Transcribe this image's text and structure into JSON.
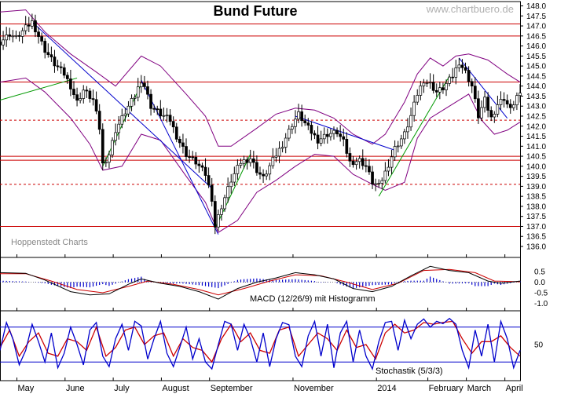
{
  "chart_data": [
    {
      "type": "candlestick",
      "title": "Bund Future",
      "watermark": "www.chartbuero.de",
      "credit": "Hoppenstedt Charts",
      "ylim": [
        135.5,
        148.2
      ],
      "yticks": [
        "148.0",
        "147.5",
        "147.0",
        "146.5",
        "146.0",
        "145.5",
        "145.0",
        "144.5",
        "144.0",
        "143.5",
        "143.0",
        "142.5",
        "142.0",
        "141.5",
        "141.0",
        "140.5",
        "140.0",
        "139.5",
        "139.0",
        "138.5",
        "138.0",
        "137.5",
        "137.0",
        "136.5",
        "136.0"
      ],
      "x_months": [
        "May",
        "June",
        "July",
        "August",
        "September",
        "November",
        "2014",
        "February",
        "March",
        "April"
      ],
      "close_path": [
        [
          0,
          146.2
        ],
        [
          3,
          146.6
        ],
        [
          5,
          146.4
        ],
        [
          8,
          146.9
        ],
        [
          10,
          147.2
        ],
        [
          12,
          146.5
        ],
        [
          14,
          145.8
        ],
        [
          17,
          145.1
        ],
        [
          20,
          144.6
        ],
        [
          22,
          144.0
        ],
        [
          24,
          143.2
        ],
        [
          26,
          143.8
        ],
        [
          29,
          143.3
        ],
        [
          31,
          141.9
        ],
        [
          32,
          140.1
        ],
        [
          34,
          140.6
        ],
        [
          36,
          141.8
        ],
        [
          39,
          142.7
        ],
        [
          42,
          143.5
        ],
        [
          44,
          144.3
        ],
        [
          45,
          144.0
        ],
        [
          47,
          143.0
        ],
        [
          50,
          142.6
        ],
        [
          53,
          142.3
        ],
        [
          55,
          141.5
        ],
        [
          58,
          140.6
        ],
        [
          61,
          140.2
        ],
        [
          64,
          139.6
        ],
        [
          66,
          138.4
        ],
        [
          67,
          137.0
        ],
        [
          69,
          138.0
        ],
        [
          72,
          139.3
        ],
        [
          75,
          140.2
        ],
        [
          78,
          140.4
        ],
        [
          80,
          139.8
        ],
        [
          82,
          139.4
        ],
        [
          85,
          140.3
        ],
        [
          88,
          141.1
        ],
        [
          91,
          142.1
        ],
        [
          93,
          142.6
        ],
        [
          96,
          141.9
        ],
        [
          99,
          141.3
        ],
        [
          102,
          141.6
        ],
        [
          105,
          141.7
        ],
        [
          107,
          141.2
        ],
        [
          109,
          140.2
        ],
        [
          112,
          140.3
        ],
        [
          114,
          140.0
        ],
        [
          116,
          139.2
        ],
        [
          118,
          139.0
        ],
        [
          120,
          139.7
        ],
        [
          123,
          140.9
        ],
        [
          126,
          141.6
        ],
        [
          128,
          142.5
        ],
        [
          130,
          143.6
        ],
        [
          132,
          144.3
        ],
        [
          134,
          144.1
        ],
        [
          136,
          143.7
        ],
        [
          138,
          143.9
        ],
        [
          141,
          144.5
        ],
        [
          143,
          145.2
        ],
        [
          145,
          144.7
        ],
        [
          147,
          144.0
        ],
        [
          149,
          142.5
        ],
        [
          151,
          143.3
        ],
        [
          153,
          142.4
        ],
        [
          155,
          143.1
        ],
        [
          157,
          143.4
        ],
        [
          159,
          142.8
        ],
        [
          161,
          143.5
        ]
      ],
      "upper_band": [
        [
          0,
          147.7
        ],
        [
          8,
          147.8
        ],
        [
          14,
          146.7
        ],
        [
          22,
          145.6
        ],
        [
          30,
          144.7
        ],
        [
          36,
          144.0
        ],
        [
          44,
          145.5
        ],
        [
          50,
          145.0
        ],
        [
          58,
          143.6
        ],
        [
          64,
          142.5
        ],
        [
          68,
          141.0
        ],
        [
          72,
          141.0
        ],
        [
          80,
          141.9
        ],
        [
          86,
          142.6
        ],
        [
          92,
          142.9
        ],
        [
          98,
          142.8
        ],
        [
          104,
          142.4
        ],
        [
          110,
          141.6
        ],
        [
          116,
          141.1
        ],
        [
          120,
          141.6
        ],
        [
          126,
          143.2
        ],
        [
          130,
          144.6
        ],
        [
          134,
          145.4
        ],
        [
          138,
          145.0
        ],
        [
          142,
          145.5
        ],
        [
          146,
          145.6
        ],
        [
          152,
          145.3
        ],
        [
          158,
          144.6
        ],
        [
          162,
          144.2
        ]
      ],
      "lower_band": [
        [
          0,
          144.2
        ],
        [
          8,
          144.4
        ],
        [
          14,
          143.7
        ],
        [
          22,
          142.4
        ],
        [
          28,
          141.1
        ],
        [
          32,
          139.8
        ],
        [
          38,
          140.0
        ],
        [
          44,
          141.6
        ],
        [
          50,
          141.3
        ],
        [
          58,
          139.5
        ],
        [
          64,
          138.2
        ],
        [
          68,
          136.7
        ],
        [
          74,
          137.3
        ],
        [
          80,
          138.7
        ],
        [
          86,
          139.3
        ],
        [
          92,
          140.0
        ],
        [
          98,
          140.6
        ],
        [
          104,
          140.5
        ],
        [
          110,
          139.6
        ],
        [
          116,
          139.1
        ],
        [
          120,
          138.8
        ],
        [
          126,
          139.2
        ],
        [
          130,
          141.4
        ],
        [
          134,
          142.4
        ],
        [
          138,
          142.8
        ],
        [
          142,
          143.2
        ],
        [
          146,
          143.6
        ],
        [
          150,
          142.3
        ],
        [
          154,
          141.6
        ],
        [
          158,
          141.8
        ],
        [
          162,
          142.2
        ]
      ],
      "h_lines": [
        147.1,
        146.5,
        144.2,
        140.5,
        140.3,
        137.0
      ],
      "h_dashed": [
        142.3,
        139.1
      ],
      "trend_lines": [
        {
          "color": "#0000cc",
          "points": [
            [
              10,
              147.2
            ],
            [
              66,
              138.9
            ]
          ]
        },
        {
          "color": "#0000cc",
          "points": [
            [
              44,
              144.3
            ],
            [
              68,
              136.6
            ]
          ]
        },
        {
          "color": "#0000cc",
          "points": [
            [
              92,
              142.5
            ],
            [
              123,
              140.8
            ]
          ]
        },
        {
          "color": "#0000cc",
          "points": [
            [
              143,
              145.4
            ],
            [
              158,
              142.4
            ]
          ]
        },
        {
          "color": "#009900",
          "points": [
            [
              0,
              143.3
            ],
            [
              24,
              144.4
            ]
          ]
        },
        {
          "color": "#009900",
          "points": [
            [
              32,
              140.0
            ],
            [
              44,
              144.1
            ]
          ]
        },
        {
          "color": "#009900",
          "points": [
            [
              67,
              136.9
            ],
            [
              78,
              140.6
            ]
          ]
        },
        {
          "color": "#009900",
          "points": [
            [
              118,
              138.5
            ],
            [
              140,
              144.5
            ]
          ]
        }
      ]
    },
    {
      "type": "line",
      "label": "MACD (12/26/9) mit Histogramm",
      "ylim": [
        -1.2,
        0.7
      ],
      "yticks": [
        "0.5",
        "0.0",
        "-0.5",
        "-1.0"
      ],
      "macd": [
        [
          0,
          0.45
        ],
        [
          8,
          0.42
        ],
        [
          14,
          0.1
        ],
        [
          22,
          -0.45
        ],
        [
          28,
          -0.6
        ],
        [
          34,
          -0.55
        ],
        [
          40,
          -0.1
        ],
        [
          44,
          0.15
        ],
        [
          50,
          -0.05
        ],
        [
          56,
          -0.2
        ],
        [
          62,
          -0.45
        ],
        [
          68,
          -0.8
        ],
        [
          74,
          -0.3
        ],
        [
          80,
          0.0
        ],
        [
          86,
          0.2
        ],
        [
          92,
          0.45
        ],
        [
          98,
          0.35
        ],
        [
          104,
          0.15
        ],
        [
          110,
          -0.3
        ],
        [
          116,
          -0.45
        ],
        [
          122,
          -0.2
        ],
        [
          128,
          0.3
        ],
        [
          134,
          0.75
        ],
        [
          140,
          0.55
        ],
        [
          146,
          0.45
        ],
        [
          152,
          0.05
        ],
        [
          156,
          -0.05
        ],
        [
          162,
          0.05
        ]
      ],
      "signal": [
        [
          0,
          0.4
        ],
        [
          8,
          0.4
        ],
        [
          16,
          0.05
        ],
        [
          24,
          -0.35
        ],
        [
          32,
          -0.5
        ],
        [
          40,
          -0.2
        ],
        [
          46,
          0.05
        ],
        [
          54,
          -0.1
        ],
        [
          62,
          -0.35
        ],
        [
          68,
          -0.6
        ],
        [
          76,
          -0.3
        ],
        [
          84,
          0.05
        ],
        [
          92,
          0.35
        ],
        [
          100,
          0.3
        ],
        [
          108,
          0.0
        ],
        [
          116,
          -0.35
        ],
        [
          124,
          -0.05
        ],
        [
          132,
          0.55
        ],
        [
          140,
          0.6
        ],
        [
          148,
          0.45
        ],
        [
          154,
          0.05
        ],
        [
          162,
          0.02
        ]
      ]
    },
    {
      "type": "line",
      "label": "Stochastik (5/3/3)",
      "ylim": [
        0,
        100
      ],
      "yticks": [
        "50"
      ],
      "levels": [
        80,
        20
      ],
      "k": [
        [
          0,
          40
        ],
        [
          2,
          88
        ],
        [
          4,
          60
        ],
        [
          6,
          15
        ],
        [
          8,
          40
        ],
        [
          10,
          85
        ],
        [
          12,
          55
        ],
        [
          14,
          20
        ],
        [
          16,
          70
        ],
        [
          18,
          10
        ],
        [
          20,
          35
        ],
        [
          22,
          80
        ],
        [
          24,
          50
        ],
        [
          26,
          15
        ],
        [
          28,
          75
        ],
        [
          30,
          88
        ],
        [
          32,
          30
        ],
        [
          34,
          12
        ],
        [
          36,
          60
        ],
        [
          38,
          85
        ],
        [
          40,
          40
        ],
        [
          42,
          90
        ],
        [
          44,
          82
        ],
        [
          46,
          25
        ],
        [
          48,
          60
        ],
        [
          50,
          90
        ],
        [
          52,
          35
        ],
        [
          54,
          12
        ],
        [
          56,
          45
        ],
        [
          58,
          80
        ],
        [
          60,
          25
        ],
        [
          62,
          60
        ],
        [
          64,
          20
        ],
        [
          66,
          8
        ],
        [
          68,
          50
        ],
        [
          70,
          90
        ],
        [
          72,
          85
        ],
        [
          74,
          40
        ],
        [
          76,
          85
        ],
        [
          78,
          60
        ],
        [
          80,
          20
        ],
        [
          82,
          70
        ],
        [
          84,
          12
        ],
        [
          86,
          60
        ],
        [
          88,
          88
        ],
        [
          90,
          84
        ],
        [
          92,
          30
        ],
        [
          94,
          12
        ],
        [
          96,
          65
        ],
        [
          98,
          90
        ],
        [
          100,
          30
        ],
        [
          102,
          85
        ],
        [
          104,
          10
        ],
        [
          106,
          70
        ],
        [
          108,
          90
        ],
        [
          110,
          20
        ],
        [
          112,
          75
        ],
        [
          114,
          30
        ],
        [
          116,
          8
        ],
        [
          118,
          55
        ],
        [
          120,
          88
        ],
        [
          122,
          90
        ],
        [
          124,
          40
        ],
        [
          126,
          92
        ],
        [
          128,
          60
        ],
        [
          130,
          85
        ],
        [
          132,
          94
        ],
        [
          134,
          80
        ],
        [
          136,
          90
        ],
        [
          138,
          86
        ],
        [
          140,
          95
        ],
        [
          142,
          85
        ],
        [
          144,
          40
        ],
        [
          146,
          10
        ],
        [
          148,
          75
        ],
        [
          150,
          30
        ],
        [
          152,
          85
        ],
        [
          154,
          20
        ],
        [
          156,
          90
        ],
        [
          158,
          60
        ],
        [
          160,
          10
        ],
        [
          162,
          40
        ]
      ],
      "d": [
        [
          0,
          45
        ],
        [
          3,
          75
        ],
        [
          6,
          30
        ],
        [
          9,
          55
        ],
        [
          12,
          70
        ],
        [
          15,
          35
        ],
        [
          18,
          30
        ],
        [
          21,
          60
        ],
        [
          24,
          55
        ],
        [
          27,
          40
        ],
        [
          30,
          80
        ],
        [
          33,
          30
        ],
        [
          36,
          45
        ],
        [
          39,
          75
        ],
        [
          42,
          80
        ],
        [
          45,
          50
        ],
        [
          48,
          65
        ],
        [
          51,
          70
        ],
        [
          54,
          30
        ],
        [
          57,
          60
        ],
        [
          60,
          45
        ],
        [
          63,
          40
        ],
        [
          66,
          20
        ],
        [
          69,
          60
        ],
        [
          72,
          85
        ],
        [
          75,
          55
        ],
        [
          78,
          70
        ],
        [
          81,
          40
        ],
        [
          84,
          35
        ],
        [
          87,
          75
        ],
        [
          90,
          80
        ],
        [
          93,
          30
        ],
        [
          96,
          50
        ],
        [
          99,
          70
        ],
        [
          102,
          60
        ],
        [
          105,
          40
        ],
        [
          108,
          75
        ],
        [
          111,
          45
        ],
        [
          114,
          50
        ],
        [
          117,
          25
        ],
        [
          120,
          70
        ],
        [
          123,
          85
        ],
        [
          126,
          70
        ],
        [
          129,
          75
        ],
        [
          132,
          88
        ],
        [
          135,
          85
        ],
        [
          138,
          88
        ],
        [
          141,
          90
        ],
        [
          144,
          60
        ],
        [
          147,
          35
        ],
        [
          150,
          55
        ],
        [
          153,
          55
        ],
        [
          156,
          65
        ],
        [
          159,
          45
        ],
        [
          162,
          30
        ]
      ]
    }
  ]
}
